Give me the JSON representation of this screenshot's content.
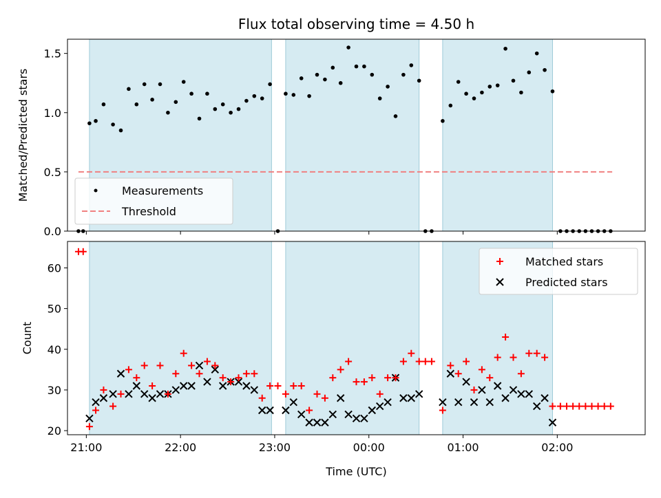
{
  "chart_data": [
    {
      "type": "scatter",
      "title": "Flux total observing time = 4.50 h",
      "xlabel": "",
      "ylabel": "Matched/Predicted stars",
      "ylim": [
        0,
        1.62
      ],
      "xlim": [
        "20:48",
        "02:56"
      ],
      "yticks": [
        "0.0",
        "0.5",
        "1.0",
        "1.5"
      ],
      "ytick_values": [
        0,
        0.5,
        1.0,
        1.5
      ],
      "legend_position": "lower-left",
      "threshold": 0.5,
      "threshold_range": [
        "20:55",
        "02:35"
      ],
      "bands": [
        [
          "21:02",
          "22:58"
        ],
        [
          "23:07",
          "00:32"
        ],
        [
          "00:47",
          "01:57"
        ]
      ],
      "series": [
        {
          "name": "Measurements",
          "color": "#000000",
          "points": [
            [
              "20:55",
              0
            ],
            [
              "20:58",
              0
            ],
            [
              "21:02",
              0.91
            ],
            [
              "21:06",
              0.93
            ],
            [
              "21:11",
              1.07
            ],
            [
              "21:17",
              0.9
            ],
            [
              "21:22",
              0.85
            ],
            [
              "21:27",
              1.2
            ],
            [
              "21:32",
              1.07
            ],
            [
              "21:37",
              1.24
            ],
            [
              "21:42",
              1.11
            ],
            [
              "21:47",
              1.24
            ],
            [
              "21:52",
              1.0
            ],
            [
              "21:57",
              1.09
            ],
            [
              "22:02",
              1.26
            ],
            [
              "22:07",
              1.16
            ],
            [
              "22:12",
              0.95
            ],
            [
              "22:17",
              1.16
            ],
            [
              "22:22",
              1.03
            ],
            [
              "22:27",
              1.07
            ],
            [
              "22:32",
              1.0
            ],
            [
              "22:37",
              1.03
            ],
            [
              "22:42",
              1.1
            ],
            [
              "22:47",
              1.14
            ],
            [
              "22:52",
              1.12
            ],
            [
              "22:57",
              1.24
            ],
            [
              "23:02",
              0
            ],
            [
              "23:07",
              1.16
            ],
            [
              "23:12",
              1.15
            ],
            [
              "23:17",
              1.29
            ],
            [
              "23:22",
              1.14
            ],
            [
              "23:27",
              1.32
            ],
            [
              "23:32",
              1.28
            ],
            [
              "23:37",
              1.38
            ],
            [
              "23:42",
              1.25
            ],
            [
              "23:47",
              1.55
            ],
            [
              "23:52",
              1.39
            ],
            [
              "23:57",
              1.39
            ],
            [
              "00:02",
              1.32
            ],
            [
              "00:07",
              1.12
            ],
            [
              "00:12",
              1.22
            ],
            [
              "00:17",
              0.97
            ],
            [
              "00:22",
              1.32
            ],
            [
              "00:27",
              1.4
            ],
            [
              "00:32",
              1.27
            ],
            [
              "00:36",
              0
            ],
            [
              "00:40",
              0
            ],
            [
              "00:47",
              0.93
            ],
            [
              "00:52",
              1.06
            ],
            [
              "00:57",
              1.26
            ],
            [
              "01:02",
              1.16
            ],
            [
              "01:07",
              1.12
            ],
            [
              "01:12",
              1.17
            ],
            [
              "01:17",
              1.22
            ],
            [
              "01:22",
              1.23
            ],
            [
              "01:27",
              1.54
            ],
            [
              "01:32",
              1.27
            ],
            [
              "01:37",
              1.17
            ],
            [
              "01:42",
              1.34
            ],
            [
              "01:47",
              1.5
            ],
            [
              "01:52",
              1.36
            ],
            [
              "01:57",
              1.18
            ],
            [
              "02:02",
              0
            ],
            [
              "02:06",
              0
            ],
            [
              "02:10",
              0
            ],
            [
              "02:14",
              0
            ],
            [
              "02:18",
              0
            ],
            [
              "02:22",
              0
            ],
            [
              "02:26",
              0
            ],
            [
              "02:30",
              0
            ],
            [
              "02:34",
              0
            ]
          ]
        },
        {
          "name": "Threshold",
          "color": "#f08080"
        }
      ]
    },
    {
      "type": "scatter",
      "title": "",
      "xlabel": "Time (UTC)",
      "ylabel": "Count",
      "ylim": [
        19,
        66.5
      ],
      "xlim": [
        "20:48",
        "02:56"
      ],
      "xticks": [
        "21:00",
        "22:00",
        "23:00",
        "00:00",
        "01:00",
        "02:00"
      ],
      "yticks": [
        "20",
        "30",
        "40",
        "50",
        "60"
      ],
      "ytick_values": [
        20,
        30,
        40,
        50,
        60
      ],
      "legend_position": "upper-right",
      "series": [
        {
          "name": "Matched stars",
          "color": "#ff0000",
          "points": [
            [
              "20:55",
              64
            ],
            [
              "20:58",
              64
            ],
            [
              "21:02",
              21
            ],
            [
              "21:06",
              25
            ],
            [
              "21:11",
              30
            ],
            [
              "21:17",
              26
            ],
            [
              "21:22",
              29
            ],
            [
              "21:27",
              35
            ],
            [
              "21:32",
              33
            ],
            [
              "21:37",
              36
            ],
            [
              "21:42",
              31
            ],
            [
              "21:47",
              36
            ],
            [
              "21:52",
              29
            ],
            [
              "21:57",
              34
            ],
            [
              "22:02",
              39
            ],
            [
              "22:07",
              36
            ],
            [
              "22:12",
              34
            ],
            [
              "22:17",
              37
            ],
            [
              "22:22",
              36
            ],
            [
              "22:27",
              33
            ],
            [
              "22:32",
              32
            ],
            [
              "22:37",
              33
            ],
            [
              "22:42",
              34
            ],
            [
              "22:47",
              34
            ],
            [
              "22:52",
              28
            ],
            [
              "22:57",
              31
            ],
            [
              "23:02",
              31
            ],
            [
              "23:07",
              29
            ],
            [
              "23:12",
              31
            ],
            [
              "23:17",
              31
            ],
            [
              "23:22",
              25
            ],
            [
              "23:27",
              29
            ],
            [
              "23:32",
              28
            ],
            [
              "23:37",
              33
            ],
            [
              "23:42",
              35
            ],
            [
              "23:47",
              37
            ],
            [
              "23:52",
              32
            ],
            [
              "23:57",
              32
            ],
            [
              "00:02",
              33
            ],
            [
              "00:07",
              29
            ],
            [
              "00:12",
              33
            ],
            [
              "00:17",
              33
            ],
            [
              "00:22",
              37
            ],
            [
              "00:27",
              39
            ],
            [
              "00:32",
              37
            ],
            [
              "00:36",
              37
            ],
            [
              "00:40",
              37
            ],
            [
              "00:47",
              25
            ],
            [
              "00:52",
              36
            ],
            [
              "00:57",
              34
            ],
            [
              "01:02",
              37
            ],
            [
              "01:07",
              30
            ],
            [
              "01:12",
              35
            ],
            [
              "01:17",
              33
            ],
            [
              "01:22",
              38
            ],
            [
              "01:27",
              43
            ],
            [
              "01:32",
              38
            ],
            [
              "01:37",
              34
            ],
            [
              "01:42",
              39
            ],
            [
              "01:47",
              39
            ],
            [
              "01:52",
              38
            ],
            [
              "01:57",
              26
            ],
            [
              "02:02",
              26
            ],
            [
              "02:06",
              26
            ],
            [
              "02:10",
              26
            ],
            [
              "02:14",
              26
            ],
            [
              "02:18",
              26
            ],
            [
              "02:22",
              26
            ],
            [
              "02:26",
              26
            ],
            [
              "02:30",
              26
            ],
            [
              "02:34",
              26
            ]
          ]
        },
        {
          "name": "Predicted stars",
          "color": "#000000",
          "points": [
            [
              "21:02",
              23
            ],
            [
              "21:06",
              27
            ],
            [
              "21:11",
              28
            ],
            [
              "21:17",
              29
            ],
            [
              "21:22",
              34
            ],
            [
              "21:27",
              29
            ],
            [
              "21:32",
              31
            ],
            [
              "21:37",
              29
            ],
            [
              "21:42",
              28
            ],
            [
              "21:47",
              29
            ],
            [
              "21:52",
              29
            ],
            [
              "21:57",
              30
            ],
            [
              "22:02",
              31
            ],
            [
              "22:07",
              31
            ],
            [
              "22:12",
              36
            ],
            [
              "22:17",
              32
            ],
            [
              "22:22",
              35
            ],
            [
              "22:27",
              31
            ],
            [
              "22:32",
              32
            ],
            [
              "22:37",
              32
            ],
            [
              "22:42",
              31
            ],
            [
              "22:47",
              30
            ],
            [
              "22:52",
              25
            ],
            [
              "22:57",
              25
            ],
            [
              "23:07",
              25
            ],
            [
              "23:12",
              27
            ],
            [
              "23:17",
              24
            ],
            [
              "23:22",
              22
            ],
            [
              "23:27",
              22
            ],
            [
              "23:32",
              22
            ],
            [
              "23:37",
              24
            ],
            [
              "23:42",
              28
            ],
            [
              "23:47",
              24
            ],
            [
              "23:52",
              23
            ],
            [
              "23:57",
              23
            ],
            [
              "00:02",
              25
            ],
            [
              "00:07",
              26
            ],
            [
              "00:12",
              27
            ],
            [
              "00:17",
              33
            ],
            [
              "00:22",
              28
            ],
            [
              "00:27",
              28
            ],
            [
              "00:32",
              29
            ],
            [
              "00:47",
              27
            ],
            [
              "00:52",
              34
            ],
            [
              "00:57",
              27
            ],
            [
              "01:02",
              32
            ],
            [
              "01:07",
              27
            ],
            [
              "01:12",
              30
            ],
            [
              "01:17",
              27
            ],
            [
              "01:22",
              31
            ],
            [
              "01:27",
              28
            ],
            [
              "01:32",
              30
            ],
            [
              "01:37",
              29
            ],
            [
              "01:42",
              29
            ],
            [
              "01:47",
              26
            ],
            [
              "01:52",
              28
            ],
            [
              "01:57",
              22
            ]
          ]
        }
      ]
    }
  ]
}
